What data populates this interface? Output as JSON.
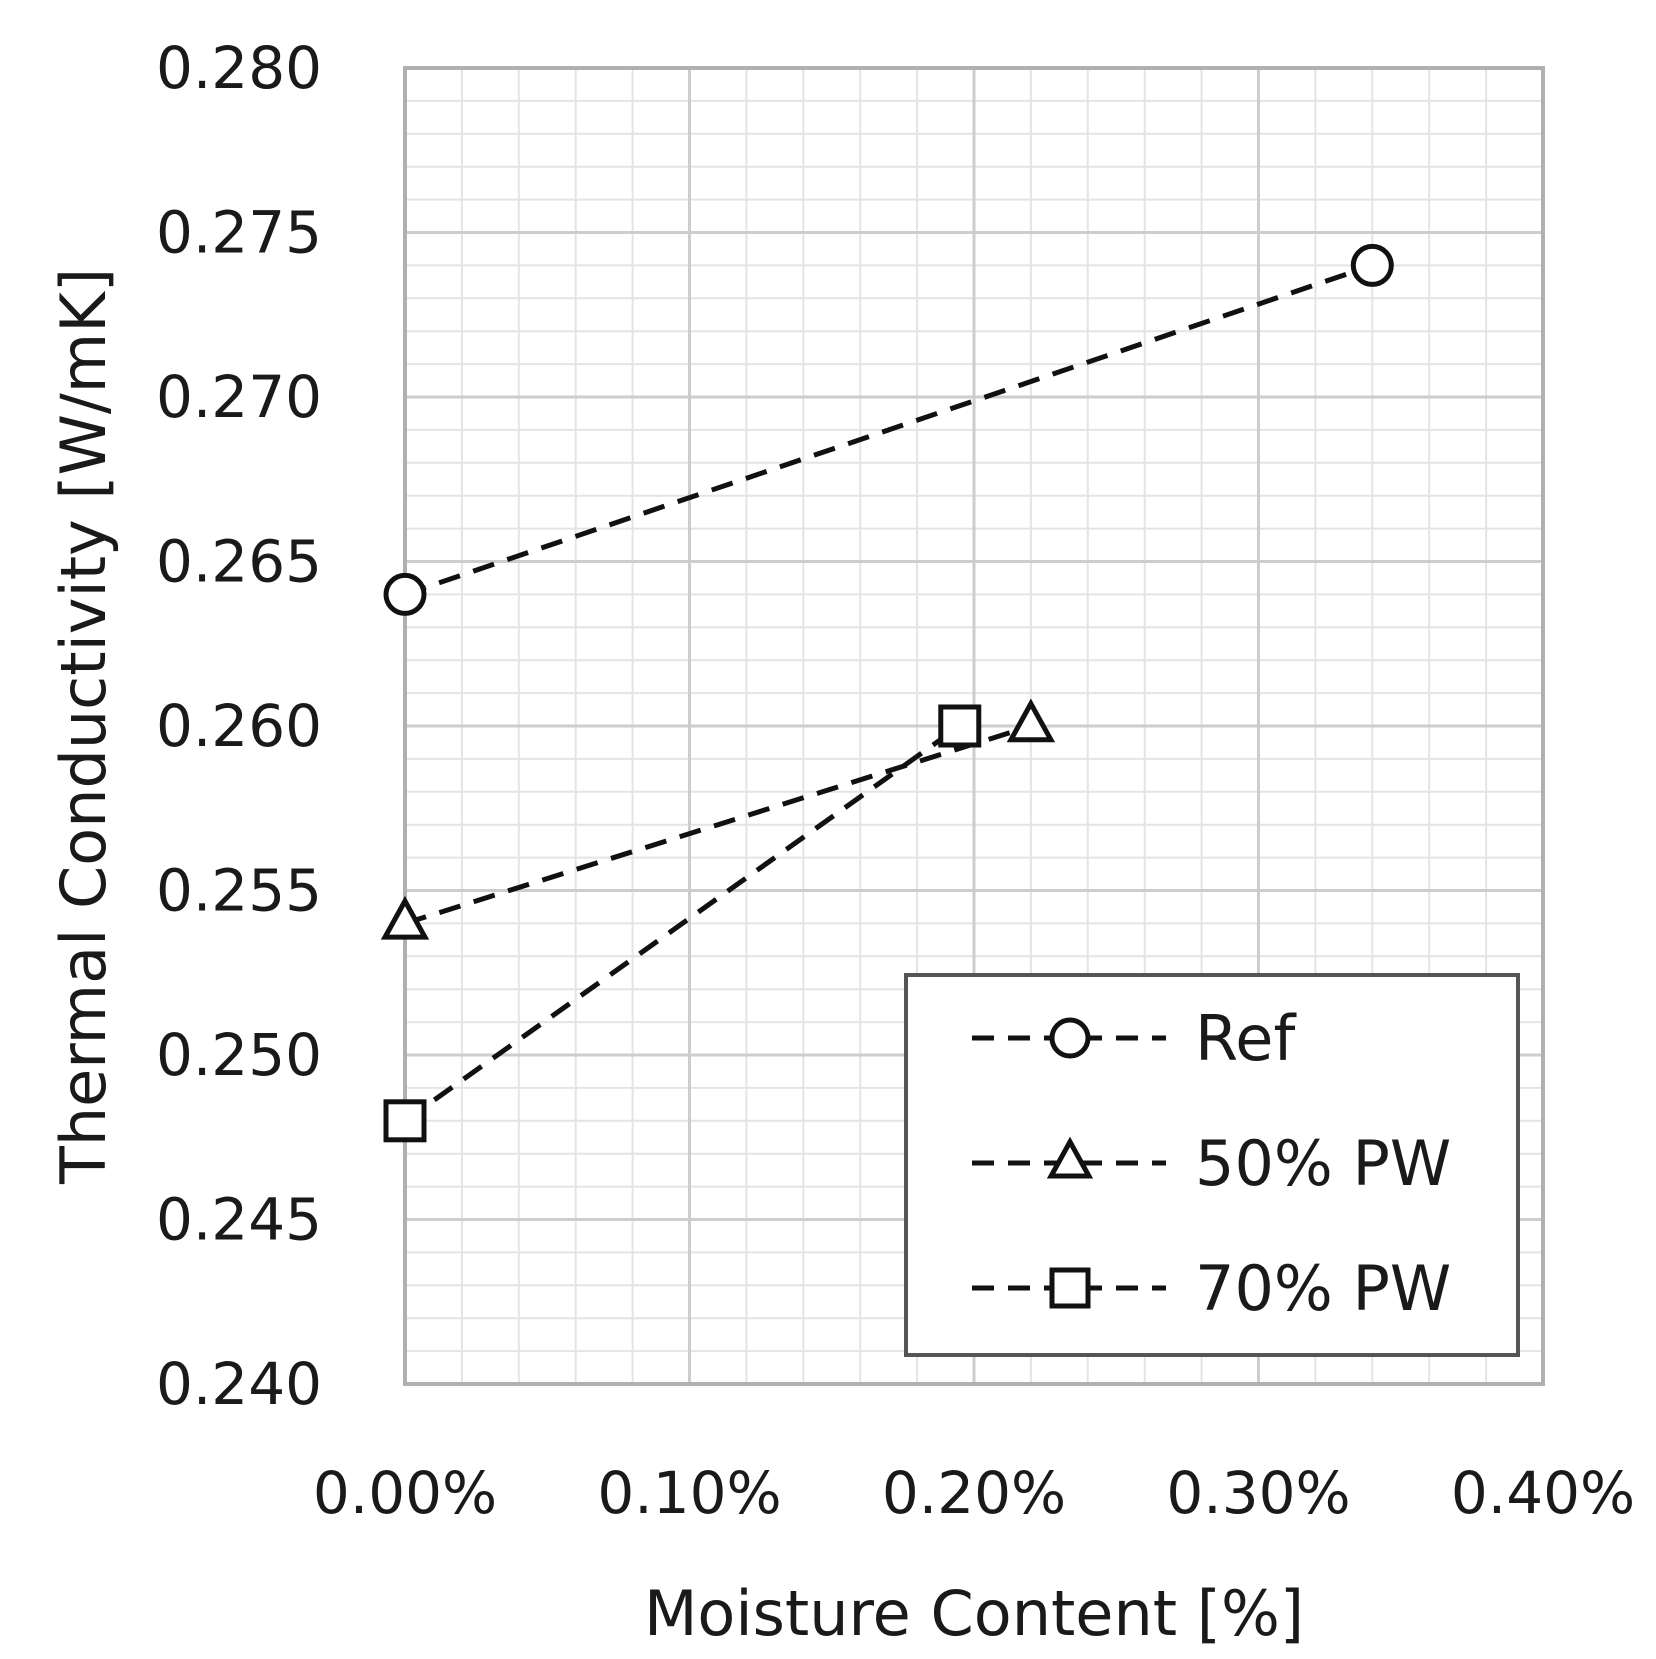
{
  "chart_data": {
    "type": "scatter",
    "title": "",
    "xlabel": "Moisture Content [%]",
    "ylabel": "Thermal Conductivity [W/mK]",
    "xlim": [
      0,
      0.4
    ],
    "ylim": [
      0.24,
      0.28
    ],
    "x_ticks": [
      "0.00%",
      "0.10%",
      "0.20%",
      "0.30%",
      "0.40%"
    ],
    "y_ticks": [
      "0.280",
      "0.275",
      "0.270",
      "0.265",
      "0.260",
      "0.255",
      "0.250",
      "0.245",
      "0.240"
    ],
    "grid": true,
    "legend_position": "bottom-right",
    "line_style": "dashed",
    "series": [
      {
        "name": "Ref",
        "marker": "circle",
        "x": [
          0.0,
          0.34
        ],
        "y": [
          0.264,
          0.274
        ]
      },
      {
        "name": "50% PW",
        "marker": "triangle",
        "x": [
          0.0,
          0.22
        ],
        "y": [
          0.254,
          0.26
        ]
      },
      {
        "name": "70% PW",
        "marker": "square",
        "x": [
          0.0,
          0.195
        ],
        "y": [
          0.248,
          0.26
        ]
      }
    ]
  }
}
